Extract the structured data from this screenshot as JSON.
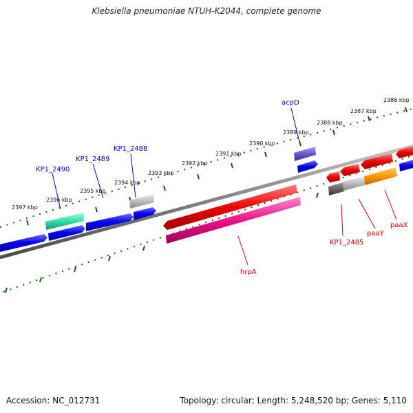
{
  "title": "Klebsiella pneumoniae NTUH-K2044, complete genome",
  "footer": {
    "accession": "Accession: NC_012731",
    "stats": "Topology: circular; Length: 5,248,520 bp; Genes: 5,110"
  },
  "ticks": [
    "2386 kbp",
    "2387 kbp",
    "2388 kbp",
    "2389 kbp",
    "2390 kbp",
    "2391 kbp",
    "2392 kbp",
    "2393 kbp",
    "2394 kbp",
    "2395 kbp",
    "2396 kbp",
    "2397 kbp"
  ],
  "gene_labels": {
    "acpD": "acpD",
    "kp1_2488": "KP1_2488",
    "kp1_2489": "KP1_2489",
    "kp1_2490": "KP1_2490",
    "hrpA": "hrpA",
    "kp1_2485": "KP1_2485",
    "paaY": "paaY",
    "paaX": "paaX"
  },
  "colors": {
    "forward": "#0000ee",
    "reverse": "#ee0000",
    "hrpA": "#ee1188",
    "kp1_2490": "#33ddaa",
    "pseudo_gray": "#bbbbbb",
    "dark_gray": "#666666",
    "orange": "#ff9900",
    "acpD": "#6a5acd",
    "tick_green": "#006600",
    "backbone": "#808080"
  }
}
